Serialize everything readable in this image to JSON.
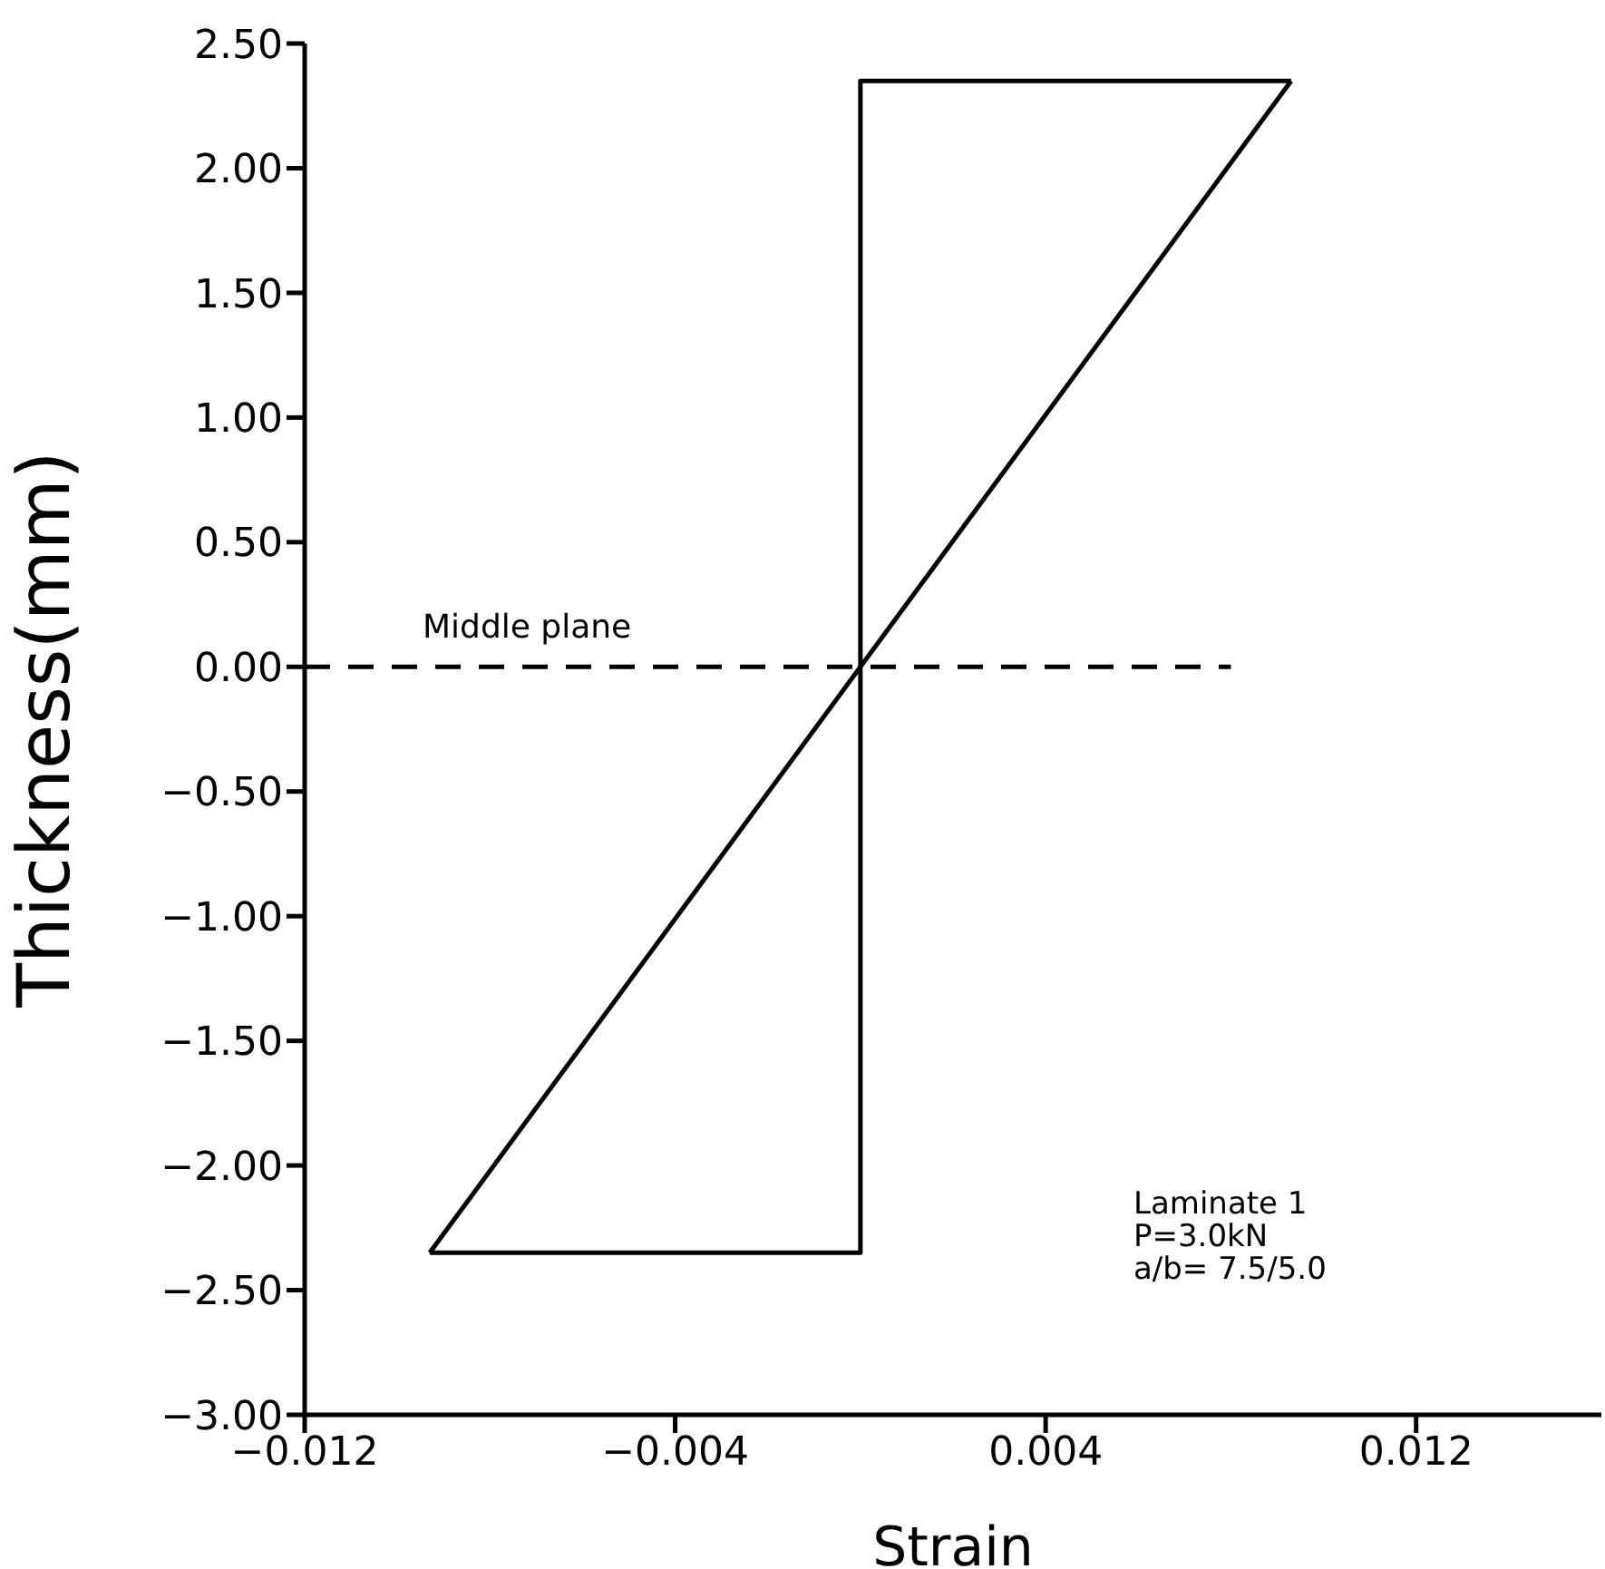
{
  "chart_data": {
    "type": "line",
    "xlabel": "Strain",
    "ylabel": "Thickness(mm)",
    "series": [
      {
        "color": "#000000",
        "x": [
          -0.0093,
          0,
          0,
          0.0093
        ],
        "values": [
          -2.35,
          -2.35,
          2.35,
          2.35
        ],
        "line_style": "solid"
      },
      {
        "color": "#000000",
        "x": [
          -0.0093,
          0.0093
        ],
        "values": [
          -2.35,
          2.35
        ],
        "line_style": "solid"
      },
      {
        "name": "Middle plane",
        "color": "#000000",
        "x": [
          -0.012,
          0.008
        ],
        "values": [
          0,
          0
        ],
        "line_style": "dashed"
      }
    ],
    "xlim": [
      -0.012,
      0.016
    ],
    "xticks": [
      {
        "value": -0.012,
        "label": "−0.012"
      },
      {
        "value": -0.004,
        "label": "−0.004"
      },
      {
        "value": 0.004,
        "label": "0.004"
      },
      {
        "value": 0.012,
        "label": "0.012"
      }
    ],
    "ylim": [
      -3,
      2.5
    ],
    "yticks": [
      {
        "value": -3,
        "label": "−3.00"
      },
      {
        "value": -2.5,
        "label": "−2.50"
      },
      {
        "value": -2,
        "label": "−2.00"
      },
      {
        "value": -1.5,
        "label": "−1.50"
      },
      {
        "value": -1,
        "label": "−1.00"
      },
      {
        "value": -0.5,
        "label": "−0.50"
      },
      {
        "value": 0,
        "label": "0.00"
      },
      {
        "value": 0.5,
        "label": "0.50"
      },
      {
        "value": 1,
        "label": "1.00"
      },
      {
        "value": 1.5,
        "label": "1.50"
      },
      {
        "value": 2,
        "label": "2.00"
      },
      {
        "value": 2.5,
        "label": "2.50"
      }
    ],
    "annotations": [
      "Laminate 1",
      "P=3.0kN",
      "a/b= 7.5/5.0"
    ],
    "grid": false,
    "legend": false,
    "marker": "none"
  }
}
